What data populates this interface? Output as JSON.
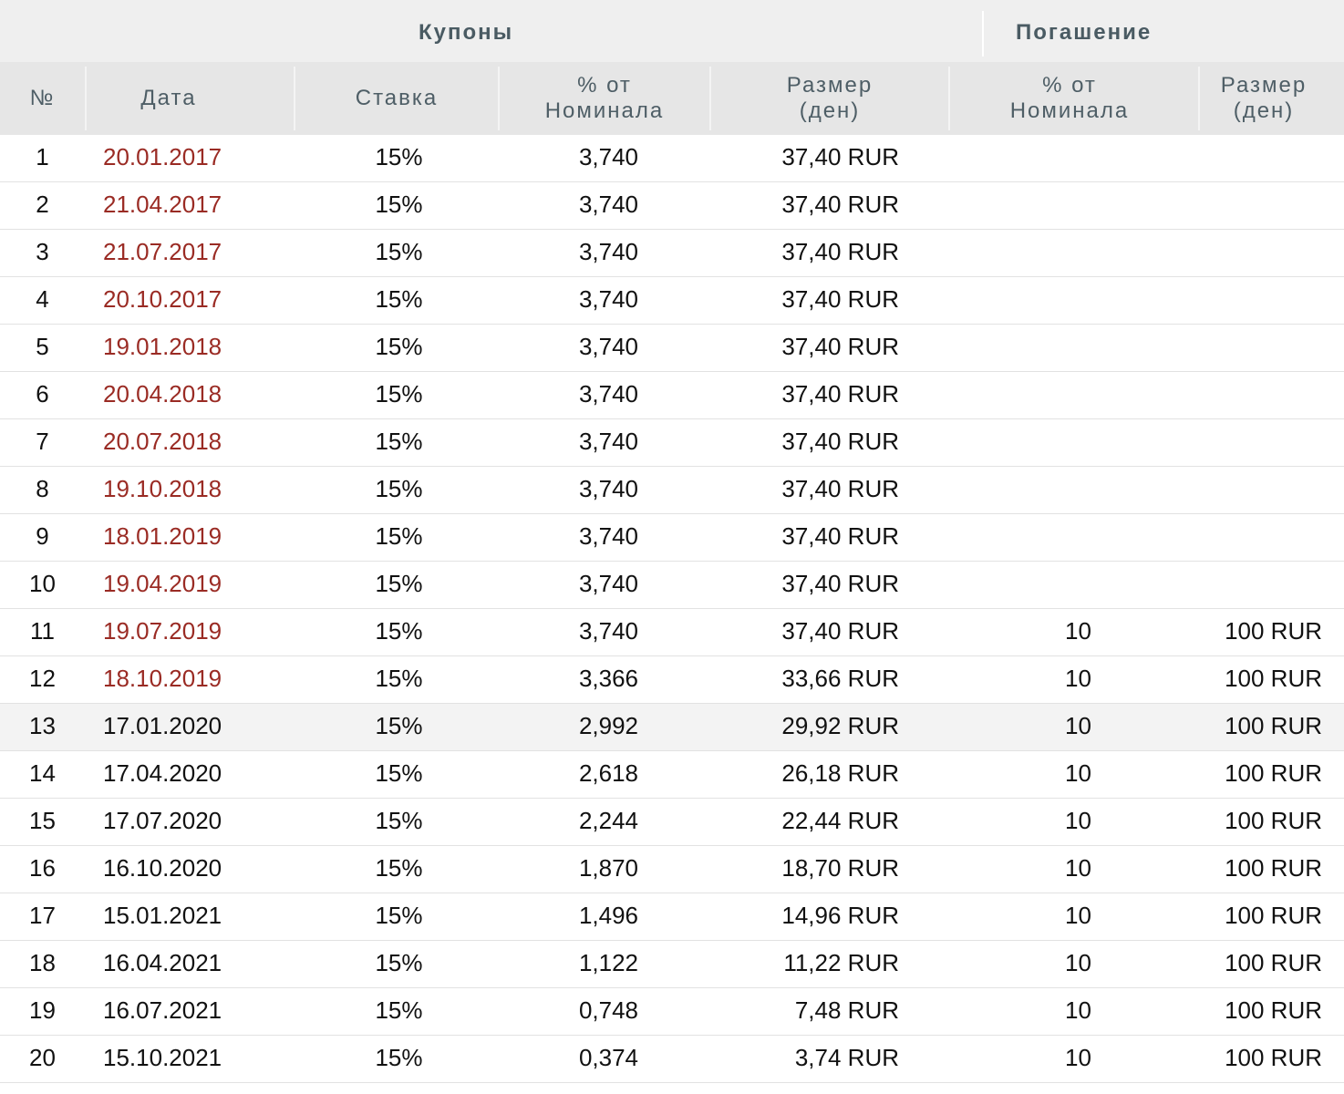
{
  "header": {
    "group_coupons": "Купоны",
    "group_redemption": "Погашение",
    "col_num": "№",
    "col_date": "Дата",
    "col_rate": "Ставка",
    "col_pct_line1": "% от",
    "col_pct_line2": "Номинала",
    "col_amount_line1": "Размер",
    "col_amount_line2": "(ден)",
    "col_rpct_line1": "% от",
    "col_rpct_line2": "Номинала",
    "col_ramount_line1": "Размер",
    "col_ramount_line2": "(ден)"
  },
  "colors": {
    "past_date": "#9a2b24",
    "header_text": "#4e5e66",
    "header_bg": "#e6e6e6"
  },
  "rows": [
    {
      "num": "1",
      "date": "20.01.2017",
      "past": true,
      "rate": "15%",
      "pct": "3,740",
      "amount": "37,40 RUR",
      "rpct": "",
      "ramount": ""
    },
    {
      "num": "2",
      "date": "21.04.2017",
      "past": true,
      "rate": "15%",
      "pct": "3,740",
      "amount": "37,40 RUR",
      "rpct": "",
      "ramount": ""
    },
    {
      "num": "3",
      "date": "21.07.2017",
      "past": true,
      "rate": "15%",
      "pct": "3,740",
      "amount": "37,40 RUR",
      "rpct": "",
      "ramount": ""
    },
    {
      "num": "4",
      "date": "20.10.2017",
      "past": true,
      "rate": "15%",
      "pct": "3,740",
      "amount": "37,40 RUR",
      "rpct": "",
      "ramount": ""
    },
    {
      "num": "5",
      "date": "19.01.2018",
      "past": true,
      "rate": "15%",
      "pct": "3,740",
      "amount": "37,40 RUR",
      "rpct": "",
      "ramount": ""
    },
    {
      "num": "6",
      "date": "20.04.2018",
      "past": true,
      "rate": "15%",
      "pct": "3,740",
      "amount": "37,40 RUR",
      "rpct": "",
      "ramount": ""
    },
    {
      "num": "7",
      "date": "20.07.2018",
      "past": true,
      "rate": "15%",
      "pct": "3,740",
      "amount": "37,40 RUR",
      "rpct": "",
      "ramount": ""
    },
    {
      "num": "8",
      "date": "19.10.2018",
      "past": true,
      "rate": "15%",
      "pct": "3,740",
      "amount": "37,40 RUR",
      "rpct": "",
      "ramount": ""
    },
    {
      "num": "9",
      "date": "18.01.2019",
      "past": true,
      "rate": "15%",
      "pct": "3,740",
      "amount": "37,40 RUR",
      "rpct": "",
      "ramount": ""
    },
    {
      "num": "10",
      "date": "19.04.2019",
      "past": true,
      "rate": "15%",
      "pct": "3,740",
      "amount": "37,40 RUR",
      "rpct": "",
      "ramount": ""
    },
    {
      "num": "11",
      "date": "19.07.2019",
      "past": true,
      "rate": "15%",
      "pct": "3,740",
      "amount": "37,40 RUR",
      "rpct": "10",
      "ramount": "100 RUR"
    },
    {
      "num": "12",
      "date": "18.10.2019",
      "past": true,
      "rate": "15%",
      "pct": "3,366",
      "amount": "33,66 RUR",
      "rpct": "10",
      "ramount": "100 RUR"
    },
    {
      "num": "13",
      "date": "17.01.2020",
      "past": false,
      "highlight": true,
      "rate": "15%",
      "pct": "2,992",
      "amount": "29,92 RUR",
      "rpct": "10",
      "ramount": "100 RUR"
    },
    {
      "num": "14",
      "date": "17.04.2020",
      "past": false,
      "rate": "15%",
      "pct": "2,618",
      "amount": "26,18 RUR",
      "rpct": "10",
      "ramount": "100 RUR"
    },
    {
      "num": "15",
      "date": "17.07.2020",
      "past": false,
      "rate": "15%",
      "pct": "2,244",
      "amount": "22,44 RUR",
      "rpct": "10",
      "ramount": "100 RUR"
    },
    {
      "num": "16",
      "date": "16.10.2020",
      "past": false,
      "rate": "15%",
      "pct": "1,870",
      "amount": "18,70 RUR",
      "rpct": "10",
      "ramount": "100 RUR"
    },
    {
      "num": "17",
      "date": "15.01.2021",
      "past": false,
      "rate": "15%",
      "pct": "1,496",
      "amount": "14,96 RUR",
      "rpct": "10",
      "ramount": "100 RUR"
    },
    {
      "num": "18",
      "date": "16.04.2021",
      "past": false,
      "rate": "15%",
      "pct": "1,122",
      "amount": "11,22 RUR",
      "rpct": "10",
      "ramount": "100 RUR"
    },
    {
      "num": "19",
      "date": "16.07.2021",
      "past": false,
      "rate": "15%",
      "pct": "0,748",
      "amount": "7,48 RUR",
      "rpct": "10",
      "ramount": "100 RUR"
    },
    {
      "num": "20",
      "date": "15.10.2021",
      "past": false,
      "rate": "15%",
      "pct": "0,374",
      "amount": "3,74 RUR",
      "rpct": "10",
      "ramount": "100 RUR"
    }
  ]
}
